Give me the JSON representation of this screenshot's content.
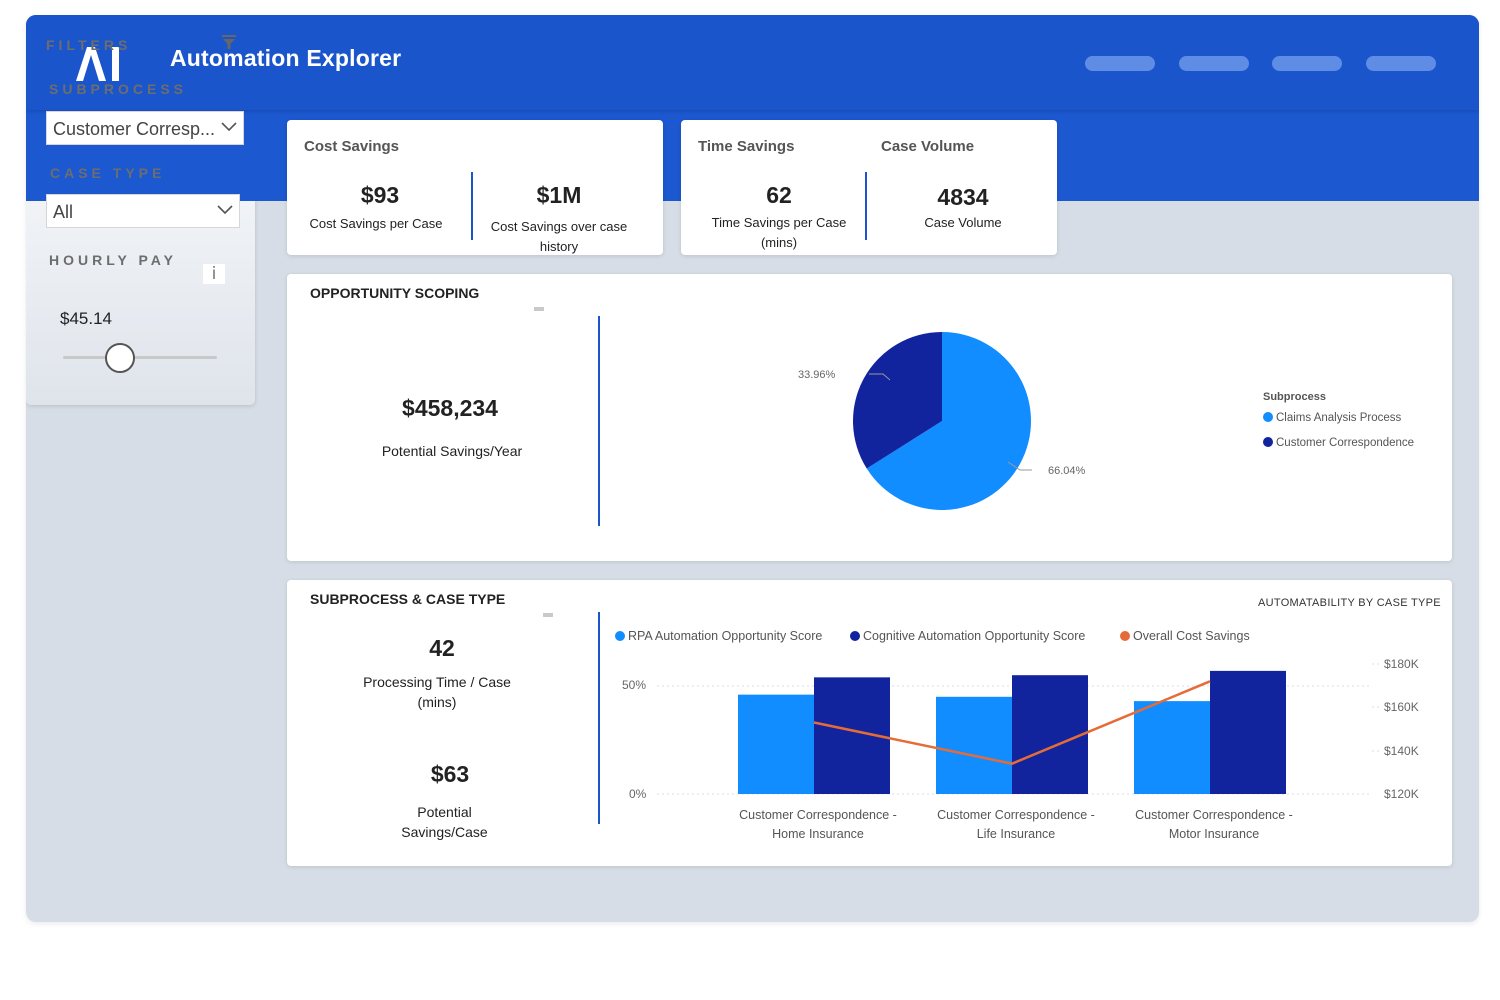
{
  "header": {
    "logo_text": "AI",
    "title": "Automation Explorer",
    "nav_count": 4
  },
  "filters": {
    "title": "FILTERS",
    "subprocess_label": "SUBPROCESS",
    "subprocess_value": "Customer Corresp...",
    "case_type_label": "CASE TYPE",
    "case_type_value": "All",
    "hourly_pay_label": "HOURLY PAY",
    "info_glyph": "i",
    "hourly_pay_value": "$45.14"
  },
  "cost_card": {
    "title": "Cost Savings",
    "per_case_value": "$93",
    "per_case_label": "Cost Savings per Case",
    "history_value": "$1M",
    "history_label": "Cost Savings over case history"
  },
  "time_card": {
    "title": "Time Savings",
    "volume_title": "Case Volume",
    "time_value": "62",
    "time_label": "Time Savings per Case (mins)",
    "volume_value": "4834",
    "volume_label": "Case Volume"
  },
  "opportunity": {
    "title": "OPPORTUNITY SCOPING",
    "savings_value": "$458,234",
    "savings_label": "Potential Savings/Year"
  },
  "subprocess_section": {
    "title": "SUBPROCESS & CASE TYPE",
    "processing_value": "42",
    "processing_label": "Processing Time / Case (mins)",
    "savings_value": "$63",
    "savings_label": "Potential Savings/Case"
  },
  "colors": {
    "primary": "#1a55cc",
    "light_blue": "#118dff",
    "dark_blue": "#12239e",
    "orange": "#e66c37"
  },
  "chart_data": [
    {
      "type": "pie",
      "legend_title": "Subprocess",
      "slices": [
        {
          "label": "Claims Analysis Process",
          "value": 66.04,
          "display": "66.04%",
          "color": "#118dff"
        },
        {
          "label": "Customer Correspondence",
          "value": 33.96,
          "display": "33.96%",
          "color": "#12239e"
        }
      ]
    },
    {
      "type": "bar",
      "title": "AUTOMATABILITY BY CASE TYPE",
      "categories": [
        [
          "Customer Correspondence -",
          "Home Insurance"
        ],
        [
          "Customer Correspondence -",
          "Life Insurance"
        ],
        [
          "Customer Correspondence -",
          "Motor Insurance"
        ]
      ],
      "series": [
        {
          "name": "RPA Automation Opportunity Score",
          "color": "#118dff",
          "values": [
            46,
            45,
            43
          ]
        },
        {
          "name": "Cognitive Automation Opportunity Score",
          "color": "#12239e",
          "values": [
            54,
            55,
            57
          ]
        },
        {
          "name": "Overall Cost Savings",
          "color": "#e66c37",
          "line": true,
          "axis": "right",
          "values": [
            153000,
            134000,
            172000
          ]
        }
      ],
      "y_left": {
        "ticks": [
          "0%",
          "50%"
        ],
        "range": [
          0,
          50
        ]
      },
      "y_right": {
        "ticks": [
          "$120K",
          "$140K",
          "$160K",
          "$180K"
        ],
        "range": [
          120000,
          180000
        ]
      }
    }
  ]
}
